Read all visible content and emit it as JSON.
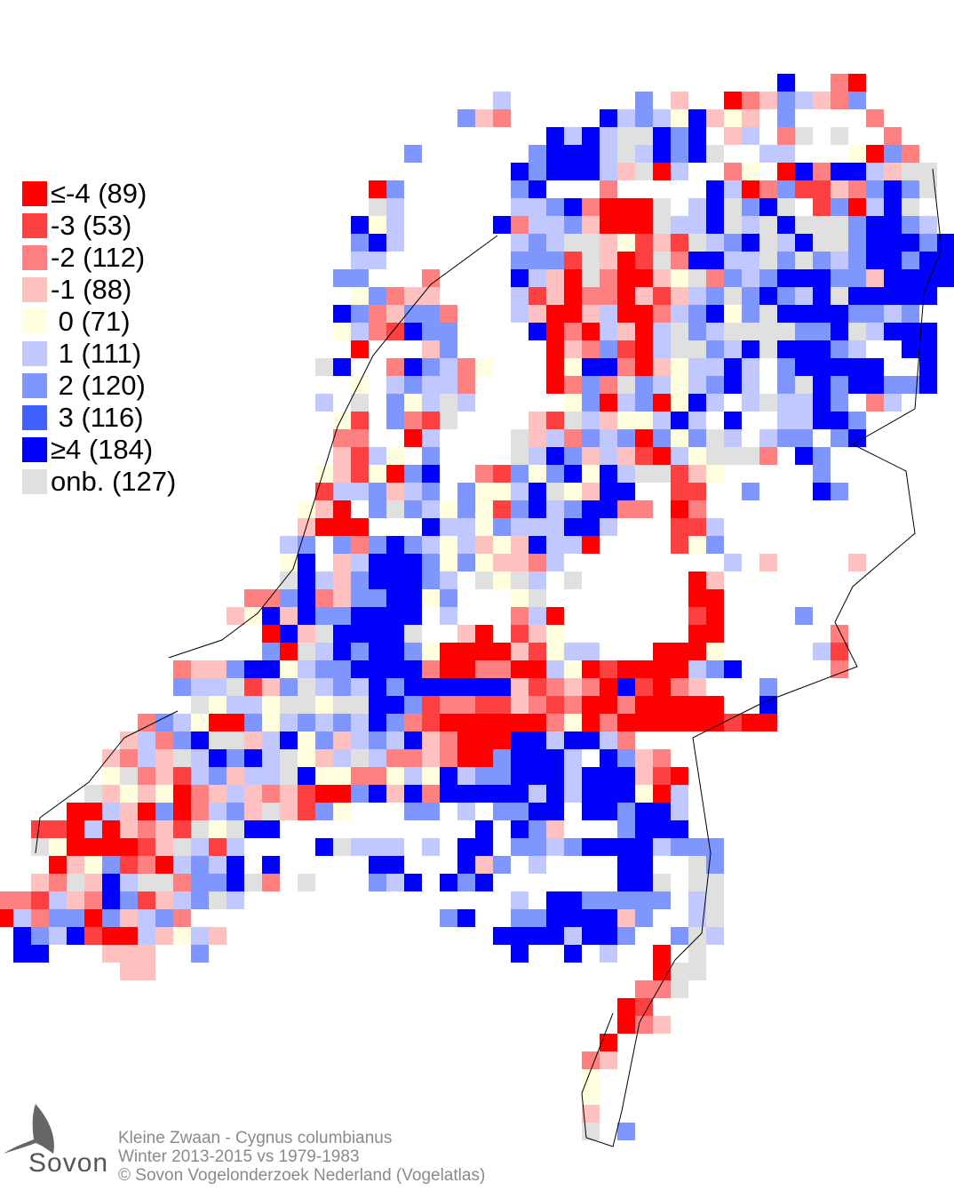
{
  "legend": {
    "items": [
      {
        "code": "R",
        "label": "≤-4 (89)",
        "color": "#ff0000"
      },
      {
        "code": "r",
        "label": "-3 (53)",
        "color": "#ff4040"
      },
      {
        "code": "p",
        "label": "-2 (112)",
        "color": "#ff8080"
      },
      {
        "code": "q",
        "label": "-1 (88)",
        "color": "#ffc0c0"
      },
      {
        "code": "y",
        "label": " 0 (71)",
        "color": "#ffffe0"
      },
      {
        "code": "l",
        "label": " 1 (111)",
        "color": "#c0c8ff"
      },
      {
        "code": "m",
        "label": " 2 (120)",
        "color": "#8096ff"
      },
      {
        "code": "b",
        "label": " 3 (116)",
        "color": "#4060ff"
      },
      {
        "code": "B",
        "label": "≥4 (184)",
        "color": "#0000ff"
      },
      {
        "code": "g",
        "label": "onb. (127)",
        "color": "#e0e0e0"
      }
    ]
  },
  "footer": {
    "line1": "Kleine Zwaan - Cygnus columbianus",
    "line2": "Winter 2013-2015 vs 1979-1983",
    "line3": "© Sovon Vogelonderzoek Nederland (Vogelatlas)"
  },
  "logo": {
    "text": "Sovon"
  },
  "grid_rows": [
    "44B 47p 48R",
    "28l 36m 38q 41R 42p 43q 44m 45l 46q 47p 48m",
    "26m 27q 28p 34B 35l 36m 37l 38y 39B 40q 41y 42q 44m 49p",
    "31B 32l 33B 34l 35g 36g 37B 38m 39B 41q 42l 44p 45g 47g 50p",
    "23m 30m 31B 32B 33B 34l 35g 36l 37B 38m 39B 40g 43l 44l 48y 49R 50m 51p",
    "29B 30m 31B 32B 33B 34l 35q 36g 37R 38l 41p 42y 44R 45B 46p 47B 48B 49l 50q 51g 52g",
    "21R 22m 29m 30B 34p 40B 41l 42R 43p 44m 45r 46r 47q 48p 49m 50B 51m 52g",
    "21g 22l 29l 30l 31m 32B 33p 34R 35R 36R 37g 39l 40B 41g 42m 43B 44g 46r 47m 48R 49l 50B 51g",
    "20B 21y 22l 28B 29p 30l 31l 32m 33q 34R 35R 36R 37g 38l 39l 40B 41g 42l 43g 44B 45g 46g 47g 48m 49B 50B 51m 52l",
    "20m 21B 22l 29l 30m 31l 32g 33g 34q 35y 36r 37q 38r 39g 40l 41m 42B 43g 44l 45B 46g 47g 48m 49B 50B 51B 52m 53B",
    "20l 21l 29m 30m 31m 32r 33g 34q 35R 36r 37g 38p 39B 40B 41l 42l 43g 44m 45g 46m 47l 48m 49B 50B 51m 52B 53B",
    "19m 20m 24p 29B 30l 31q 32R 33g 34p 35R 36R 37q 38y 39g 40p 41m 42l 43m 44B 45B 46B 47m 48m 49q 50B 51B 52B 53B",
    "20y 21m 22p 23q 24q 29l 30r 31q 32R 33p 34p 35R 36q 37r 38q 39l 40m 41g 42m 43B 44m 45l 46B 47g 48B 49B 50B 51B 52B",
    "19B 20m 21p 22q 23m 24m 25p 29l 30q 31R 32R 33q 34l 35R 36R 37p 38l 39m 40B 41y 42m 43g 44B 45B 46B 47B 48m 49m 50l 51m",
    "19y 20l 21p 22r 23B 24m 25m 30B 31R 32p 33R 34l 35q 36R 37l 38g 39m 40l 41g 42g 43g 44g 45m 46m 47B 48g 49l 50B 51B 52B",
    "20R 24q 25m 31R 32q 33p 34m 35r 36R 37l 38g 39g 40m 41l 42B 43g 44B 45B 46B 47m 48l 51B 52B",
    "18g 19B 22p 23B 24m 25l 26p 27y 31R 32y 33B 34B 35p 36R 37q 38y 39l 40l 41B 42l 44m 45B 46B 47B 48B 49B 52B",
    "20y 22l 23m 24l 25l 26p 31R 32p 33m 34p 35g 36m 37l 38y 39l 40m 41B 42l 44m 45g 46B 47m 48B 49B 50m 51m 52B",
    "18l 20g 22m 23y 24l 25g 26l 32y 33m 34R 35l 36m 37R 38y 39B 40l 42l 43g 44l 45l 46B 47m 49p 50l",
    "19y 20r 22m 23p 24r 25g 30q 31r 32g 33l 34q 35y 36y 37l 38B 39l 41B 44l 45l 46B 47B 48m",
    "19p 20p 23R 24l 29g 30q 31l 32p 33m 34l 35m 36R 37m 38y 39m 40g 41l 43l 44m 45m 47m 48B",
    "19q 20r 21l 22y 24m 29g 30l 31B 32m 33q 34l 35q 36r 37R 38l 39y 40g 41g 42g 43p 45B 46m",
    "18y 19q 20r 21y 22R 23m 24B 27p 28r 29m 30y 31m 32B 33y 34B 35l 36g 37g 38r 39q 40y 46m",
    "18r 19l 20l 21m 22q 23l 24m 26m 27y 28y 29l 30B 31g 32y 33q 34B 35B 38r 39r 42m 46B 47m",
    "17y 18q 19R 21m 22g 23m 24l 25y 26m 27y 28r 29m 30B 31l 32m 33B 34B 35p 36p 38R 39p",
    "17q 18R 19R 20R 24B 25l 26l 27y 28m 29l 30l 31l 32B 33B 34l 38r 39r 40l",
    "16l 17m 19m 20p 21m 22B 23m 24l 25y 26l 27q 28y 29q 30B 31l 32l 33R 38r 39y 40m",
    "16y 17B 19q 20l 21B 22B 23B 24m 25y 26m 27y 28q 29q 30p 31l 41l 43q 48q",
    "16g 17B 18l 19q 20m 21B 22B 23B 24m 25l 27g 28y 29g 30l 32g 39R 40q",
    "14p 15p 16m 17B 18p 19q 20m 21m 22B 23B 24y 25m 29y 30g 39R 40R",
    "13q 14y 15B 16q 17B 18m 19m 20B 21B 22B 23B 25l 29p 30l 31R 39r 40R 45m",
    "15R 16B 17q 18g 19B 20B 21B 22B 23g 26q 27R 29r 30q 31y 39R 40R 47p",
    "15m 16R 17g 18l 19B 20m 21B 22B 23m 24y 25R 26R 27R 28R 29q 30r 31y 32l 33l 37R 38R 39R 40y 46l 47r",
    "10p 11q 12q 13m 14B 15B 16y 17l 18m 19m 20B 21B 22B 23B 24p 25R 26R 27p 28p 29R 30R 31l 32y 33R 34r 35R 36R 37R 38R 39l 40m 41B 47p",
    "10m 11l 12l 13g 14r 15q 16m 17g 18l 19m 20l 21B 22m 23B 24B 25B 26B 27B 28B 29q 30r 31p 32q 33p 34R 35B 36r 37R 38p 39q 43m",
    "11g 12y 13l 14l 15y 16g 17g 18y 19g 20g 21B 22B 23m 24r 25p 26p 27r 28r 29q 30p 31r 32p 33R 34R 35p 36R 37R 38R 39R 40R 43B",
    "8p 9m 10l 11y 12R 13R 14m 15y 16l 17m 18l 19m 20l 21B 22m 23p 24r 25R 26R 27R 28R 29R 30R 31p 32y 33R 34p 35R 36R 37R 38R 39R 40R 41r 42R 43R",
    "7q 8l 9p 10m 11B 12g 13g 14q 15l 16B 17y 18m 19q 20l 21m 22l 23B 24q 25p 26R 27R 28R 29B 30B 31l 32B 33B 34l 35p",
    "6q 7p 8l 9q 10g 11l 12B 13m 14B 15l 16g 17y 18q 19l 20g 21l 22p 23p 24q 25p 26R 27R 28m 29B 30B 31B 32l 34B 35m 36q 37p",
    "6y 7g 8p 9q 10r 11l 12m 13q 14l 15l 16g 17B 18y 19y 20p 21p 22y 23l 24y 25B 26l 27m 28m 29B 30B 31B 32l 33B 34B 35B 36q 37r 38R",
    "5g 6q 7y 8q 9y 10R 11p 12q 13l 14q 15p 16q 17r 18R 19R 20m 21B 22q 23B 24p 25B 26B 27B 28B 29B 30l 31B 32l 33B 34B 35B 36y 37R 38l",
    "4R 5R 6l 7q 8R 9m 10R 11p 12l 13m 14q 15g 16q 17r 18m 19y 23m 24m 26l 28m 29m 30B 31B 33B 34B 35m 36B 37B 38l",
    "2r 3r 4R 5l 6R 7q 8p 9q 10r 11g 12y 13g 14B 15B 27B 29B 30m 31q 35m 36B 37B 38B",
    "2g 3y 4R 5R 6R 7R 8r 9q 10g 11l 12r 13l 18B 19g 20l 21l 22l 24l 26B 27B 29m 30m 31l 32m 33B 34B 35B 36B 37l 38m 39m 40m",
    "3R 4q 5y 6m 7r 8p 9R 10l 11m 12l 13B 15B 21B 22B 26B 27q 28m 30l 35B 36B 39g 40m",
    "2q 3p 4g 5q 6B 7l 8g 9g 10p 11m 12m 13B 14g 15p 17g 21m 22l 23B 25B 26m 27B 35B 36B 37g 39g 40g",
    "0p 1p 2r 3l 4q 5p 6B 7m 8r 9q 10l 11m 12g 13l 29l 31B 32B 33m 34m 35m 36m 37m 39l 40g",
    "0R 1l 2p 3m 4m 5R 6m 7q 8l 9m 10p 25m 26B 29m 30m 31B 32B 33B 34B 35q 36m 39l 40g",
    "1B 2m 3l 4B 5r 6R 7R 8l 9q 10y 11l 12q 28B 29B 30B 31B 32l 33B 34B 35m 38m 39g 40l",
    "1B 2B 6q 7q 8q 11m 29B 32B 34l 37R 39g",
    "7q 8q 37R 38g 39g",
    "36p 37p 38g",
    "35R 36r",
    "35R 36p 37q",
    "34R",
    "33p 34q",
    "33y",
    "33y",
    "33q",
    "33g 35m"
  ]
}
